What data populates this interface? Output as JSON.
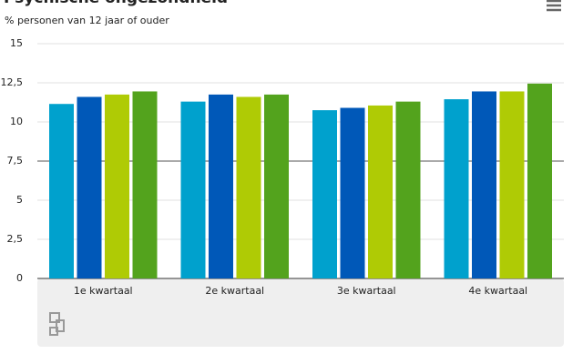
{
  "chart_data": {
    "type": "bar",
    "title": "Psychische ongezondheid",
    "subtitle": "% personen van 12 jaar of ouder",
    "categories": [
      "1e kwartaal",
      "2e kwartaal",
      "3e kwartaal",
      "4e kwartaal"
    ],
    "series": [
      {
        "color": "#00a1cd",
        "values": [
          11.15,
          11.3,
          10.75,
          11.45
        ]
      },
      {
        "color": "#0058b8",
        "values": [
          11.6,
          11.75,
          10.9,
          11.95
        ]
      },
      {
        "color": "#afcb05",
        "values": [
          11.75,
          11.6,
          11.05,
          11.95
        ]
      },
      {
        "color": "#53a31d",
        "values": [
          11.95,
          11.75,
          11.3,
          12.45
        ]
      }
    ],
    "ylim": [
      0,
      15
    ],
    "yticks": [
      0,
      {
        "value": 2.5,
        "label": "2,5"
      },
      5,
      {
        "value": 7.5,
        "label": "7,5"
      },
      10,
      {
        "value": 12.5,
        "label": "12,5"
      },
      15
    ],
    "plot_lines": [
      7.5
    ],
    "grid": true
  }
}
